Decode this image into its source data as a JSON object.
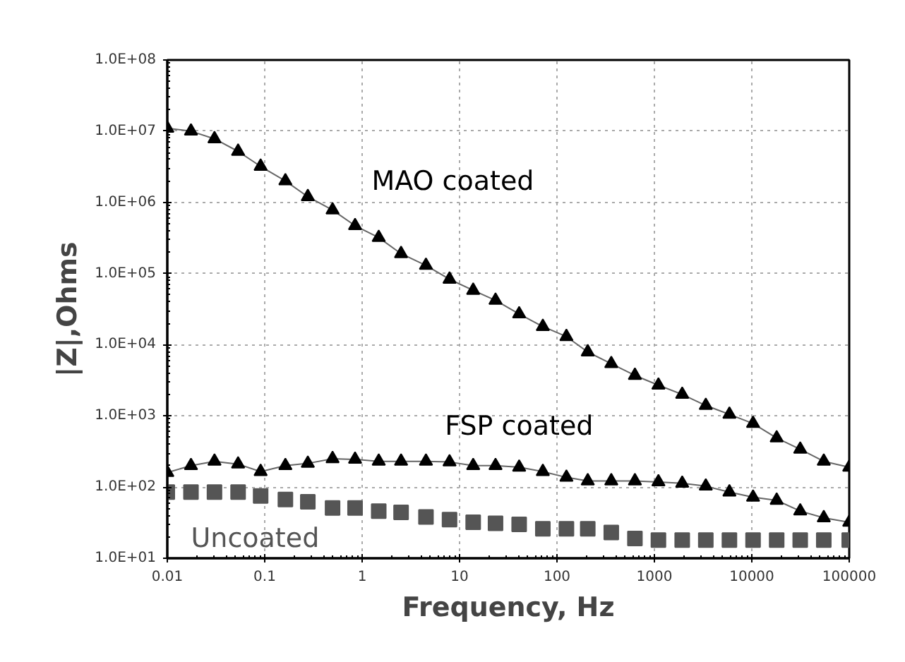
{
  "chart_data": {
    "type": "line",
    "xlabel": "Frequency, Hz",
    "ylabel": "|Z|,Ohms",
    "log": "xy",
    "grid": true,
    "legend": false,
    "marker": "triangle",
    "line_style": "solid",
    "x": [
      0.01,
      0.0175,
      0.0305,
      0.0533,
      0.0908,
      0.163,
      0.277,
      0.497,
      0.846,
      1.48,
      2.51,
      4.52,
      7.89,
      13.8,
      23.4,
      40.9,
      71.6,
      125,
      207,
      361,
      631,
      1100,
      1930,
      3370,
      5890,
      10300,
      18000,
      31400,
      54800,
      100000
    ],
    "series": [
      {
        "name": "MAO coated",
        "color": "#000000",
        "values": [
          11000000,
          10000000,
          7800000,
          5200000,
          3200000,
          2000000,
          1200000,
          780000,
          470000,
          320000,
          190000,
          130000,
          83000,
          58000,
          42000,
          27000,
          18000,
          13000,
          7900,
          5400,
          3700,
          2700,
          2000,
          1400,
          1050,
          780,
          490,
          340,
          230,
          190
        ]
      },
      {
        "name": "FSP coated",
        "color": "#000000",
        "values": [
          160,
          200,
          230,
          210,
          165,
          200,
          215,
          250,
          245,
          230,
          230,
          230,
          225,
          200,
          200,
          190,
          165,
          137,
          122,
          122,
          122,
          118,
          113,
          103,
          85,
          72,
          65,
          46,
          37,
          32
        ]
      },
      {
        "name": "Uncoated",
        "type": "scatter",
        "marker": "square",
        "color": "#555555",
        "values": [
          85,
          85,
          85,
          85,
          75,
          67,
          62,
          51,
          51,
          46,
          44,
          38,
          35,
          32,
          31,
          30,
          26,
          26,
          26,
          23,
          19,
          18,
          18,
          18,
          18,
          18,
          18,
          18,
          18,
          18
        ]
      }
    ],
    "xlim": [
      0.01,
      100000
    ],
    "ylim": [
      10,
      100000000
    ],
    "xticks": [
      0.01,
      0.1,
      1,
      10,
      100,
      1000,
      10000,
      100000
    ],
    "yticks": [
      {
        "value": 10,
        "label": "1.0E+01"
      },
      {
        "value": 100,
        "label": "1.0E+02"
      },
      {
        "value": 1000,
        "label": "1.0E+03"
      },
      {
        "value": 10000,
        "label": "1.0E+04"
      },
      {
        "value": 100000,
        "label": "1.0E+05"
      },
      {
        "value": 1000000,
        "label": "1.0E+06"
      },
      {
        "value": 10000000,
        "label": "1.0E+07"
      },
      {
        "value": 100000000,
        "label": "1.0E+08"
      }
    ]
  }
}
